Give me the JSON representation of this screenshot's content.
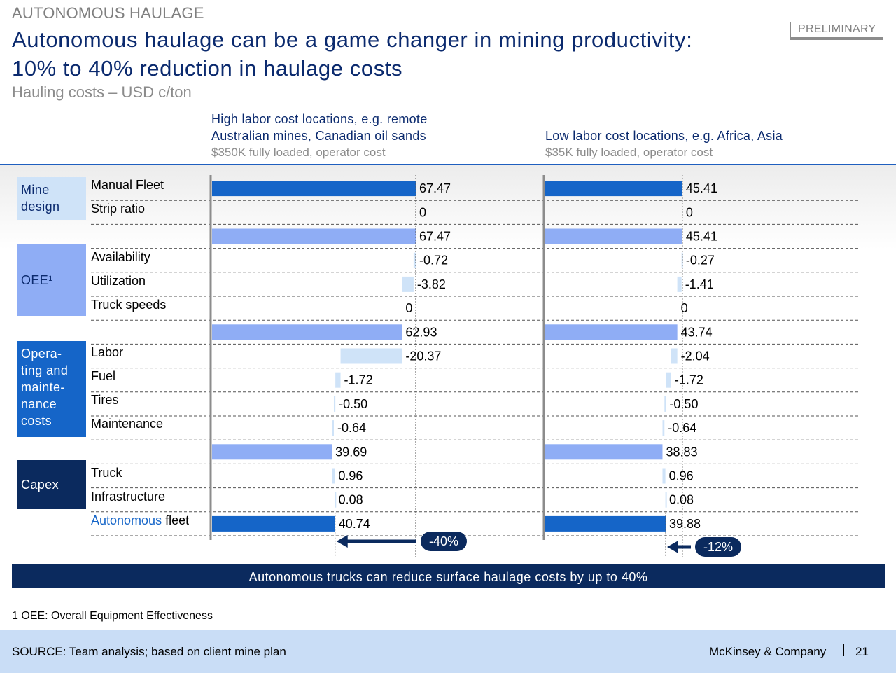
{
  "header": {
    "eyebrow": "AUTONOMOUS HAULAGE",
    "title": "Autonomous haulage can be a game changer in mining productivity: 10% to 40% reduction in haulage costs",
    "subtitle": "Hauling costs – USD c/ton",
    "stamp": "PRELIMINARY"
  },
  "columns": [
    {
      "title_line1": "High labor cost locations, e.g. remote",
      "title_line2": "Australian mines, Canadian oil sands",
      "subtitle": "$350K fully loaded, operator cost"
    },
    {
      "title_line1": "",
      "title_line2": "Low labor cost locations, e.g. Africa, Asia",
      "subtitle": "$35K fully loaded, operator cost"
    }
  ],
  "groups": [
    {
      "label": "Mine design",
      "color": "#cfe3f8",
      "text_color": "#0b2a6e"
    },
    {
      "label": "OEE¹",
      "color": "#8fadf5",
      "text_color": "#0b2a6e"
    },
    {
      "label": "Opera-ting and mainte-nance costs",
      "color": "#1565c8",
      "text_color": "#ffffff"
    },
    {
      "label": "Capex",
      "color": "#0b2a5e",
      "text_color": "#ffffff"
    }
  ],
  "row_labels": {
    "manual_fleet": "Manual Fleet",
    "strip_ratio": "Strip ratio",
    "availability": "Availability",
    "utilization": "Utilization",
    "truck_speeds": "Truck speeds",
    "labor": "Labor",
    "fuel": "Fuel",
    "tires": "Tires",
    "maintenance": "Maintenance",
    "truck": "Truck",
    "infrastructure": "Infrastructure",
    "autonomous_word": "Autonomous",
    "fleet_word": " fleet"
  },
  "chart_data": {
    "type": "bar",
    "subtype": "waterfall",
    "unit": "USD c/ton",
    "rows": [
      "Manual Fleet",
      "Strip ratio",
      "",
      "Availability",
      "Utilization",
      "Truck speeds",
      "",
      "Labor",
      "Fuel",
      "Tires",
      "Maintenance",
      "",
      "Truck",
      "Infrastructure",
      "Autonomous fleet"
    ],
    "series": [
      {
        "name": "High labor cost locations",
        "values": [
          {
            "label": "67.47",
            "value": 67.47,
            "kind": "total"
          },
          {
            "label": "0",
            "value": 0,
            "kind": "delta"
          },
          {
            "label": "67.47",
            "value": 67.47,
            "kind": "subtotal"
          },
          {
            "label": "-0.72",
            "value": -0.72,
            "kind": "delta"
          },
          {
            "label": "-3.82",
            "value": -3.82,
            "kind": "delta"
          },
          {
            "label": "0",
            "value": 0,
            "kind": "delta"
          },
          {
            "label": "62.93",
            "value": 62.93,
            "kind": "subtotal"
          },
          {
            "label": "-20.37",
            "value": -20.37,
            "kind": "delta"
          },
          {
            "label": "-1.72",
            "value": -1.72,
            "kind": "delta"
          },
          {
            "label": "-0.50",
            "value": -0.5,
            "kind": "delta"
          },
          {
            "label": "-0.64",
            "value": -0.64,
            "kind": "delta"
          },
          {
            "label": "39.69",
            "value": 39.69,
            "kind": "subtotal"
          },
          {
            "label": "0.96",
            "value": 0.96,
            "kind": "delta"
          },
          {
            "label": "0.08",
            "value": 0.08,
            "kind": "delta"
          },
          {
            "label": "40.74",
            "value": 40.74,
            "kind": "total"
          }
        ],
        "change_label": "-40%"
      },
      {
        "name": "Low labor cost locations",
        "values": [
          {
            "label": "45.41",
            "value": 45.41,
            "kind": "total"
          },
          {
            "label": "0",
            "value": 0,
            "kind": "delta"
          },
          {
            "label": "45.41",
            "value": 45.41,
            "kind": "subtotal"
          },
          {
            "label": "-0.27",
            "value": -0.27,
            "kind": "delta"
          },
          {
            "label": "-1.41",
            "value": -1.41,
            "kind": "delta"
          },
          {
            "label": "0",
            "value": 0,
            "kind": "delta"
          },
          {
            "label": "43.74",
            "value": 43.74,
            "kind": "subtotal"
          },
          {
            "label": "-2.04",
            "value": -2.04,
            "kind": "delta"
          },
          {
            "label": "-1.72",
            "value": -1.72,
            "kind": "delta"
          },
          {
            "label": "-0.50",
            "value": -0.5,
            "kind": "delta"
          },
          {
            "label": "-0.64",
            "value": -0.64,
            "kind": "delta"
          },
          {
            "label": "38.83",
            "value": 38.83,
            "kind": "subtotal"
          },
          {
            "label": "0.96",
            "value": 0.96,
            "kind": "delta"
          },
          {
            "label": "0.08",
            "value": 0.08,
            "kind": "delta"
          },
          {
            "label": "39.88",
            "value": 39.88,
            "kind": "total"
          }
        ],
        "change_label": "-12%"
      }
    ],
    "colors": {
      "total": "#1565c8",
      "subtotal": "#8fadf5",
      "delta": "#cfe3f8",
      "arrow": "#0b2a5e"
    }
  },
  "conclusion": "Autonomous trucks can reduce surface haulage costs by up to 40%",
  "footnote": "1 OEE: Overall Equipment Effectiveness",
  "footer": {
    "source": "SOURCE: Team analysis; based on client mine plan",
    "brand": "McKinsey & Company",
    "page": "21"
  }
}
